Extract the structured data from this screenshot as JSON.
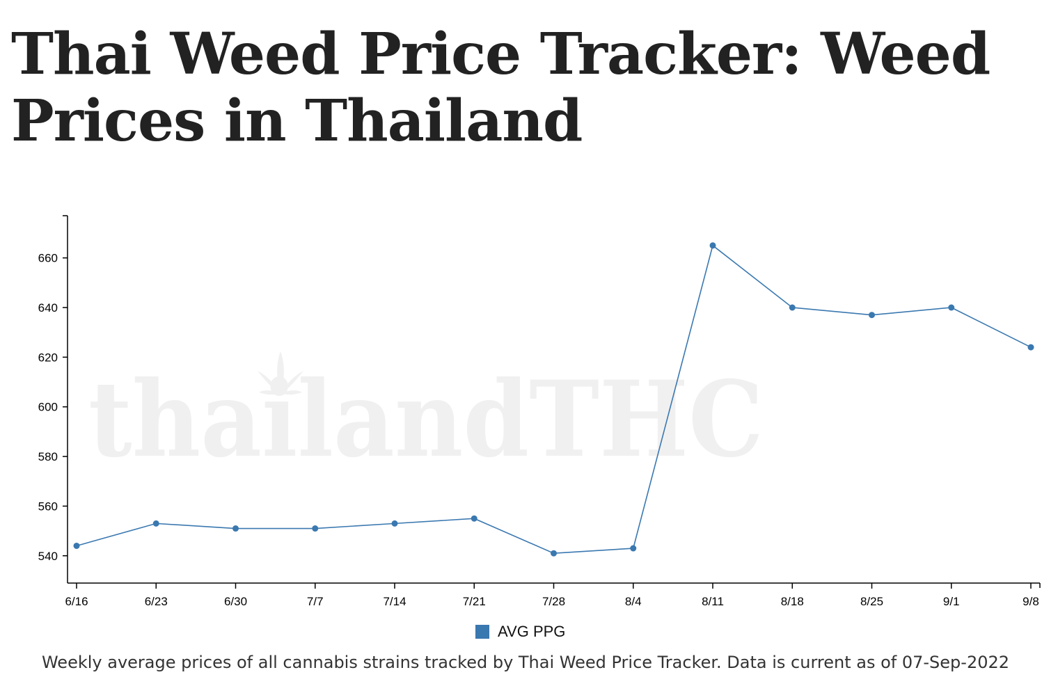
{
  "page": {
    "title": "Thai Weed Price Tracker: Weed Prices in Thailand",
    "caption": "Weekly average prices of all cannabis strains tracked by Thai Weed Price Tracker. Data is current as of 07-Sep-2022",
    "watermark": "thailandTHC"
  },
  "colors": {
    "series": "#3a78b0",
    "title": "#222222",
    "watermark": "#f1f0f0"
  },
  "chart_data": {
    "type": "line",
    "title": "",
    "xlabel": "",
    "ylabel": "",
    "categories": [
      "6/16",
      "6/23",
      "6/30",
      "7/7",
      "7/14",
      "7/21",
      "7/28",
      "8/4",
      "8/11",
      "8/18",
      "8/25",
      "9/1",
      "9/8"
    ],
    "yticks": [
      540,
      560,
      580,
      600,
      620,
      640,
      660
    ],
    "ylim": [
      529,
      677
    ],
    "series": [
      {
        "name": "AVG PPG",
        "values": [
          544,
          553,
          551,
          551,
          553,
          555,
          541,
          543,
          665,
          640,
          637,
          640,
          624
        ]
      }
    ],
    "legend": "bottom-center",
    "grid": false
  }
}
